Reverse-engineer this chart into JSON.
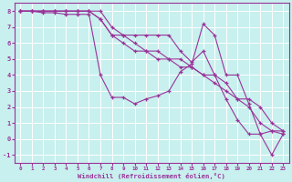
{
  "background_color": "#c8f0ee",
  "line_color": "#993399",
  "grid_color": "#ffffff",
  "xlabel": "Windchill (Refroidissement éolien,°C)",
  "xlim": [
    -0.5,
    23.5
  ],
  "ylim": [
    -1.5,
    8.5
  ],
  "yticks": [
    -1,
    0,
    1,
    2,
    3,
    4,
    5,
    6,
    7,
    8
  ],
  "xticks": [
    0,
    1,
    2,
    3,
    4,
    5,
    6,
    7,
    8,
    9,
    10,
    11,
    12,
    13,
    14,
    15,
    16,
    17,
    18,
    19,
    20,
    21,
    22,
    23
  ],
  "series": [
    {
      "x": [
        0,
        1,
        2,
        3,
        4,
        5,
        6,
        7,
        8,
        9,
        10,
        11,
        12,
        13,
        14,
        15,
        16,
        17,
        18,
        19,
        20,
        21,
        22,
        23
      ],
      "y": [
        8,
        8,
        8,
        8,
        8,
        8,
        8,
        8,
        7,
        6.5,
        6,
        5.5,
        5.5,
        5,
        5,
        4.5,
        4,
        3.5,
        3,
        2.5,
        2,
        1,
        0.5,
        0.3
      ]
    },
    {
      "x": [
        0,
        1,
        2,
        3,
        4,
        5,
        6,
        7,
        8,
        9,
        10,
        11,
        12,
        13,
        14,
        15,
        16,
        17,
        18,
        19,
        20,
        21,
        22,
        23
      ],
      "y": [
        8,
        8,
        8,
        8,
        8,
        8,
        8,
        7.5,
        6.5,
        6,
        5.5,
        5.5,
        5,
        5,
        4.5,
        4.5,
        4,
        4,
        3.5,
        2.5,
        2.5,
        2,
        1,
        0.5
      ]
    },
    {
      "x": [
        0,
        1,
        2,
        3,
        4,
        5,
        6,
        7,
        8,
        9,
        10,
        11,
        12,
        13,
        14,
        15,
        16,
        17,
        18,
        19,
        20,
        21,
        22,
        23
      ],
      "y": [
        8,
        8,
        7.9,
        7.9,
        7.8,
        7.8,
        7.8,
        4,
        2.6,
        2.6,
        2.2,
        2.5,
        2.7,
        3.0,
        4.2,
        4.7,
        7.2,
        6.5,
        4,
        4,
        2.2,
        0.3,
        -1,
        0.3
      ]
    },
    {
      "x": [
        0,
        1,
        2,
        3,
        4,
        5,
        6,
        7,
        8,
        9,
        10,
        11,
        12,
        13,
        14,
        15,
        16,
        17,
        18,
        19,
        20,
        21,
        22,
        23
      ],
      "y": [
        8,
        8,
        8,
        8,
        8,
        8,
        8,
        7.5,
        6.5,
        6.5,
        6.5,
        6.5,
        6.5,
        6.5,
        5.5,
        4.8,
        5.5,
        4,
        2.5,
        1.2,
        0.3,
        0.3,
        0.5,
        0.5
      ]
    }
  ]
}
